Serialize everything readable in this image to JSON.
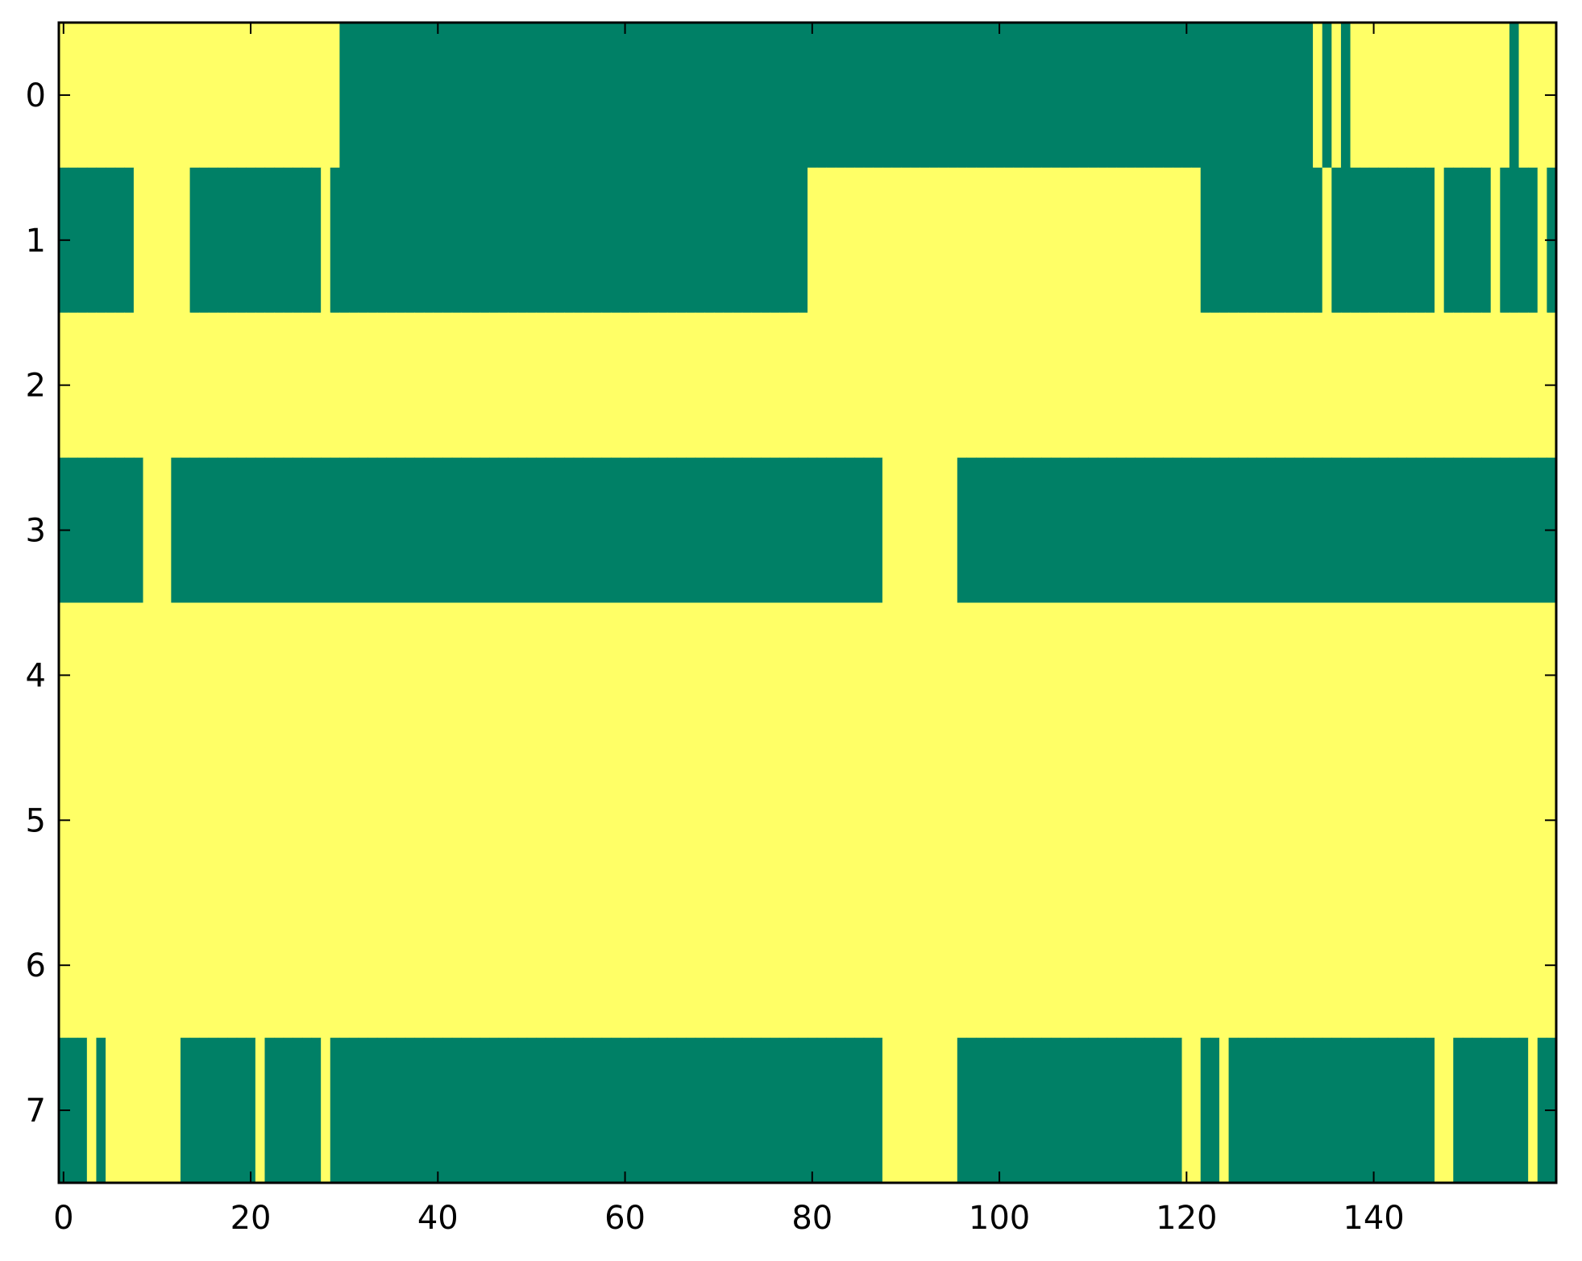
{
  "chart_data": {
    "type": "heatmap",
    "title": "",
    "xlabel": "",
    "ylabel": "",
    "xlim": [
      -0.5,
      159.5
    ],
    "ylim": [
      7.5,
      -0.5
    ],
    "xticks": [
      0,
      20,
      40,
      60,
      80,
      100,
      120,
      140
    ],
    "xtick_labels": [
      "0",
      "20",
      "40",
      "60",
      "80",
      "100",
      "120",
      "140"
    ],
    "yticks": [
      0,
      1,
      2,
      3,
      4,
      5,
      6,
      7
    ],
    "ytick_labels": [
      "0",
      "1",
      "2",
      "3",
      "4",
      "5",
      "6",
      "7"
    ],
    "grid": false,
    "colormap": "summer",
    "colors": {
      "0": "#008066",
      "1": "#ffff66"
    },
    "z": [
      [
        1,
        1,
        1,
        1,
        1,
        1,
        1,
        1,
        1,
        1,
        1,
        1,
        1,
        1,
        1,
        1,
        1,
        1,
        1,
        1,
        1,
        1,
        1,
        1,
        1,
        1,
        1,
        1,
        1,
        1,
        0,
        0,
        0,
        0,
        0,
        0,
        0,
        0,
        0,
        0,
        0,
        0,
        0,
        0,
        0,
        0,
        0,
        0,
        0,
        0,
        0,
        0,
        0,
        0,
        0,
        0,
        0,
        0,
        0,
        0,
        0,
        0,
        0,
        0,
        0,
        0,
        0,
        0,
        0,
        0,
        0,
        0,
        0,
        0,
        0,
        0,
        0,
        0,
        0,
        0,
        0,
        0,
        0,
        0,
        0,
        0,
        0,
        0,
        0,
        0,
        0,
        0,
        0,
        0,
        0,
        0,
        0,
        0,
        0,
        0,
        0,
        0,
        0,
        0,
        0,
        0,
        0,
        0,
        0,
        0,
        0,
        0,
        0,
        0,
        0,
        0,
        0,
        0,
        0,
        0,
        0,
        0,
        0,
        0,
        0,
        0,
        0,
        0,
        0,
        0,
        0,
        0,
        0,
        0,
        1,
        0,
        1,
        0,
        1,
        1,
        1,
        1,
        1,
        1,
        1,
        1,
        1,
        1,
        1,
        1,
        1,
        1,
        1,
        1,
        1,
        0,
        1,
        1,
        1,
        1
      ],
      [
        0,
        0,
        0,
        0,
        0,
        0,
        0,
        0,
        1,
        1,
        1,
        1,
        1,
        1,
        0,
        0,
        0,
        0,
        0,
        0,
        0,
        0,
        0,
        0,
        0,
        0,
        0,
        0,
        1,
        0,
        0,
        0,
        0,
        0,
        0,
        0,
        0,
        0,
        0,
        0,
        0,
        0,
        0,
        0,
        0,
        0,
        0,
        0,
        0,
        0,
        0,
        0,
        0,
        0,
        0,
        0,
        0,
        0,
        0,
        0,
        0,
        0,
        0,
        0,
        0,
        0,
        0,
        0,
        0,
        0,
        0,
        0,
        0,
        0,
        0,
        0,
        0,
        0,
        0,
        0,
        1,
        1,
        1,
        1,
        1,
        1,
        1,
        1,
        1,
        1,
        1,
        1,
        1,
        1,
        1,
        1,
        1,
        1,
        1,
        1,
        1,
        1,
        1,
        1,
        1,
        1,
        1,
        1,
        1,
        1,
        1,
        1,
        1,
        1,
        1,
        1,
        1,
        1,
        1,
        1,
        1,
        1,
        0,
        0,
        0,
        0,
        0,
        0,
        0,
        0,
        0,
        0,
        0,
        0,
        0,
        1,
        0,
        0,
        0,
        0,
        0,
        0,
        0,
        0,
        0,
        0,
        0,
        1,
        0,
        0,
        0,
        0,
        0,
        1,
        0,
        0,
        0,
        0,
        1,
        0
      ],
      [
        1,
        1,
        1,
        1,
        1,
        1,
        1,
        1,
        1,
        1,
        1,
        1,
        1,
        1,
        1,
        1,
        1,
        1,
        1,
        1,
        1,
        1,
        1,
        1,
        1,
        1,
        1,
        1,
        1,
        1,
        1,
        1,
        1,
        1,
        1,
        1,
        1,
        1,
        1,
        1,
        1,
        1,
        1,
        1,
        1,
        1,
        1,
        1,
        1,
        1,
        1,
        1,
        1,
        1,
        1,
        1,
        1,
        1,
        1,
        1,
        1,
        1,
        1,
        1,
        1,
        1,
        1,
        1,
        1,
        1,
        1,
        1,
        1,
        1,
        1,
        1,
        1,
        1,
        1,
        1,
        1,
        1,
        1,
        1,
        1,
        1,
        1,
        1,
        1,
        1,
        1,
        1,
        1,
        1,
        1,
        1,
        1,
        1,
        1,
        1,
        1,
        1,
        1,
        1,
        1,
        1,
        1,
        1,
        1,
        1,
        1,
        1,
        1,
        1,
        1,
        1,
        1,
        1,
        1,
        1,
        1,
        1,
        1,
        1,
        1,
        1,
        1,
        1,
        1,
        1,
        1,
        1,
        1,
        1,
        1,
        1,
        1,
        1,
        1,
        1,
        1,
        1,
        1,
        1,
        1,
        1,
        1,
        1,
        1,
        1,
        1,
        1,
        1,
        1,
        1,
        1,
        1,
        1,
        1,
        1
      ],
      [
        0,
        0,
        0,
        0,
        0,
        0,
        0,
        0,
        0,
        1,
        1,
        1,
        0,
        0,
        0,
        0,
        0,
        0,
        0,
        0,
        0,
        0,
        0,
        0,
        0,
        0,
        0,
        0,
        0,
        0,
        0,
        0,
        0,
        0,
        0,
        0,
        0,
        0,
        0,
        0,
        0,
        0,
        0,
        0,
        0,
        0,
        0,
        0,
        0,
        0,
        0,
        0,
        0,
        0,
        0,
        0,
        0,
        0,
        0,
        0,
        0,
        0,
        0,
        0,
        0,
        0,
        0,
        0,
        0,
        0,
        0,
        0,
        0,
        0,
        0,
        0,
        0,
        0,
        0,
        0,
        0,
        0,
        0,
        0,
        0,
        0,
        0,
        0,
        1,
        1,
        1,
        1,
        1,
        1,
        1,
        1,
        0,
        0,
        0,
        0,
        0,
        0,
        0,
        0,
        0,
        0,
        0,
        0,
        0,
        0,
        0,
        0,
        0,
        0,
        0,
        0,
        0,
        0,
        0,
        0,
        0,
        0,
        0,
        0,
        0,
        0,
        0,
        0,
        0,
        0,
        0,
        0,
        0,
        0,
        0,
        0,
        0,
        0,
        0,
        0,
        0,
        0,
        0,
        0,
        0,
        0,
        0,
        0,
        0,
        0,
        0,
        0,
        0,
        0,
        0,
        0,
        0,
        0,
        0,
        0
      ],
      [
        1,
        1,
        1,
        1,
        1,
        1,
        1,
        1,
        1,
        1,
        1,
        1,
        1,
        1,
        1,
        1,
        1,
        1,
        1,
        1,
        1,
        1,
        1,
        1,
        1,
        1,
        1,
        1,
        1,
        1,
        1,
        1,
        1,
        1,
        1,
        1,
        1,
        1,
        1,
        1,
        1,
        1,
        1,
        1,
        1,
        1,
        1,
        1,
        1,
        1,
        1,
        1,
        1,
        1,
        1,
        1,
        1,
        1,
        1,
        1,
        1,
        1,
        1,
        1,
        1,
        1,
        1,
        1,
        1,
        1,
        1,
        1,
        1,
        1,
        1,
        1,
        1,
        1,
        1,
        1,
        1,
        1,
        1,
        1,
        1,
        1,
        1,
        1,
        1,
        1,
        1,
        1,
        1,
        1,
        1,
        1,
        1,
        1,
        1,
        1,
        1,
        1,
        1,
        1,
        1,
        1,
        1,
        1,
        1,
        1,
        1,
        1,
        1,
        1,
        1,
        1,
        1,
        1,
        1,
        1,
        1,
        1,
        1,
        1,
        1,
        1,
        1,
        1,
        1,
        1,
        1,
        1,
        1,
        1,
        1,
        1,
        1,
        1,
        1,
        1,
        1,
        1,
        1,
        1,
        1,
        1,
        1,
        1,
        1,
        1,
        1,
        1,
        1,
        1,
        1,
        1,
        1,
        1,
        1,
        1
      ],
      [
        1,
        1,
        1,
        1,
        1,
        1,
        1,
        1,
        1,
        1,
        1,
        1,
        1,
        1,
        1,
        1,
        1,
        1,
        1,
        1,
        1,
        1,
        1,
        1,
        1,
        1,
        1,
        1,
        1,
        1,
        1,
        1,
        1,
        1,
        1,
        1,
        1,
        1,
        1,
        1,
        1,
        1,
        1,
        1,
        1,
        1,
        1,
        1,
        1,
        1,
        1,
        1,
        1,
        1,
        1,
        1,
        1,
        1,
        1,
        1,
        1,
        1,
        1,
        1,
        1,
        1,
        1,
        1,
        1,
        1,
        1,
        1,
        1,
        1,
        1,
        1,
        1,
        1,
        1,
        1,
        1,
        1,
        1,
        1,
        1,
        1,
        1,
        1,
        1,
        1,
        1,
        1,
        1,
        1,
        1,
        1,
        1,
        1,
        1,
        1,
        1,
        1,
        1,
        1,
        1,
        1,
        1,
        1,
        1,
        1,
        1,
        1,
        1,
        1,
        1,
        1,
        1,
        1,
        1,
        1,
        1,
        1,
        1,
        1,
        1,
        1,
        1,
        1,
        1,
        1,
        1,
        1,
        1,
        1,
        1,
        1,
        1,
        1,
        1,
        1,
        1,
        1,
        1,
        1,
        1,
        1,
        1,
        1,
        1,
        1,
        1,
        1,
        1,
        1,
        1,
        1,
        1,
        1,
        1,
        1
      ],
      [
        1,
        1,
        1,
        1,
        1,
        1,
        1,
        1,
        1,
        1,
        1,
        1,
        1,
        1,
        1,
        1,
        1,
        1,
        1,
        1,
        1,
        1,
        1,
        1,
        1,
        1,
        1,
        1,
        1,
        1,
        1,
        1,
        1,
        1,
        1,
        1,
        1,
        1,
        1,
        1,
        1,
        1,
        1,
        1,
        1,
        1,
        1,
        1,
        1,
        1,
        1,
        1,
        1,
        1,
        1,
        1,
        1,
        1,
        1,
        1,
        1,
        1,
        1,
        1,
        1,
        1,
        1,
        1,
        1,
        1,
        1,
        1,
        1,
        1,
        1,
        1,
        1,
        1,
        1,
        1,
        1,
        1,
        1,
        1,
        1,
        1,
        1,
        1,
        1,
        1,
        1,
        1,
        1,
        1,
        1,
        1,
        1,
        1,
        1,
        1,
        1,
        1,
        1,
        1,
        1,
        1,
        1,
        1,
        1,
        1,
        1,
        1,
        1,
        1,
        1,
        1,
        1,
        1,
        1,
        1,
        1,
        1,
        1,
        1,
        1,
        1,
        1,
        1,
        1,
        1,
        1,
        1,
        1,
        1,
        1,
        1,
        1,
        1,
        1,
        1,
        1,
        1,
        1,
        1,
        1,
        1,
        1,
        1,
        1,
        1,
        1,
        1,
        1,
        1,
        1,
        1,
        1,
        1,
        1,
        1
      ],
      [
        0,
        0,
        0,
        1,
        0,
        1,
        1,
        1,
        1,
        1,
        1,
        1,
        1,
        0,
        0,
        0,
        0,
        0,
        0,
        0,
        0,
        1,
        0,
        0,
        0,
        0,
        0,
        0,
        1,
        0,
        0,
        0,
        0,
        0,
        0,
        0,
        0,
        0,
        0,
        0,
        0,
        0,
        0,
        0,
        0,
        0,
        0,
        0,
        0,
        0,
        0,
        0,
        0,
        0,
        0,
        0,
        0,
        0,
        0,
        0,
        0,
        0,
        0,
        0,
        0,
        0,
        0,
        0,
        0,
        0,
        0,
        0,
        0,
        0,
        0,
        0,
        0,
        0,
        0,
        0,
        0,
        0,
        0,
        0,
        0,
        0,
        0,
        0,
        1,
        1,
        1,
        1,
        1,
        1,
        1,
        1,
        0,
        0,
        0,
        0,
        0,
        0,
        0,
        0,
        0,
        0,
        0,
        0,
        0,
        0,
        0,
        0,
        0,
        0,
        0,
        0,
        0,
        0,
        0,
        0,
        1,
        1,
        0,
        0,
        1,
        0,
        0,
        0,
        0,
        0,
        0,
        0,
        0,
        0,
        0,
        0,
        0,
        0,
        0,
        0,
        0,
        0,
        0,
        0,
        0,
        0,
        0,
        1,
        1,
        0,
        0,
        0,
        0,
        0,
        0,
        0,
        0,
        1,
        0,
        0
      ]
    ]
  }
}
